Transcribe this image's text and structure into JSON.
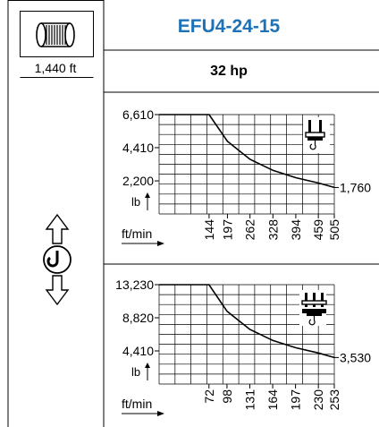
{
  "header": {
    "model": "EFU4-24-15",
    "power": "32 hp",
    "rope_length": "1,440 ft"
  },
  "icons": {
    "rope_drum": "rope-drum-icon",
    "hook_updown": "hook-up-down-icon",
    "single_trolley": "single-trolley-icon",
    "double_trolley": "double-trolley-icon"
  },
  "chart_data": [
    {
      "type": "line",
      "xlabel": "ft/min",
      "ylabel": "lb",
      "x_ticks": [
        144,
        197,
        262,
        328,
        394,
        459,
        505
      ],
      "y_ticks": [
        2200,
        4410,
        6610
      ],
      "y_tick_labels": [
        "2,200",
        "4,410",
        "6,610"
      ],
      "end_label": "1,760",
      "xlim": [
        0,
        505
      ],
      "ylim": [
        0,
        6610
      ],
      "series": [
        {
          "x": [
            0,
            144,
            197,
            262,
            328,
            394,
            459,
            505
          ],
          "y": [
            6610,
            6610,
            4830,
            3630,
            2900,
            2410,
            2060,
            1760
          ]
        }
      ],
      "grid": true
    },
    {
      "type": "line",
      "xlabel": "ft/min",
      "ylabel": "lb",
      "x_ticks": [
        72,
        98,
        131,
        164,
        197,
        230,
        253
      ],
      "y_ticks": [
        4410,
        8820,
        13230
      ],
      "y_tick_labels": [
        "4,410",
        "8,820",
        "13,230"
      ],
      "end_label": "3,530",
      "xlim": [
        0,
        253
      ],
      "ylim": [
        0,
        13230
      ],
      "series": [
        {
          "x": [
            0,
            72,
            98,
            131,
            164,
            197,
            230,
            253
          ],
          "y": [
            13230,
            13230,
            9700,
            7270,
            5810,
            4840,
            4140,
            3530
          ]
        }
      ],
      "grid": true
    }
  ]
}
